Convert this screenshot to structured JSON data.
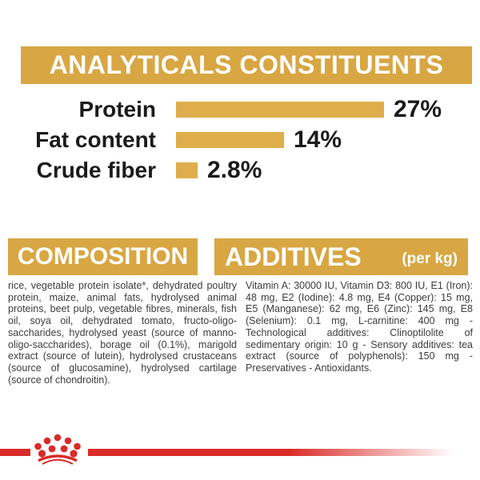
{
  "colors": {
    "gold_header": "#D8A743",
    "gold_bar": "#DFAE4B",
    "red": "#D92B27",
    "ink": "#1B1B1B",
    "body_text": "#3C3C3C"
  },
  "analyticals": {
    "title": "ANALYTICALS CONSTITUENTS"
  },
  "chart_data": {
    "type": "bar",
    "orientation": "horizontal",
    "title": "ANALYTICALS CONSTITUENTS",
    "categories": [
      "Protein",
      "Fat content",
      "Crude fiber"
    ],
    "values": [
      27,
      14,
      2.8
    ],
    "value_labels": [
      "27%",
      "14%",
      "2.8%"
    ],
    "unit": "%",
    "xlim": [
      0,
      28
    ],
    "grid": false,
    "legend": false,
    "bar_color": "#DFAE4B"
  },
  "composition": {
    "title": "COMPOSITION",
    "body": "rice, vegetable protein isolate*, dehydrated poultry protein, maize, animal fats, hydrolysed animal proteins, beet pulp, vegetable fibres, minerals, fish oil, soya oil, dehydrated tomato, fructo-oligo-saccharides, hydrolysed yeast (source of manno-oligo-saccharides), borage oil (0.1%), marigold extract (source of lutein), hydrolysed crustaceans (source of glucosamine), hydrolysed cartilage (source of chondroitin)."
  },
  "additives": {
    "title": "ADDITIVES",
    "title_suffix": "(per kg)",
    "body": "Vitamin A: 30000 IU, Vitamin D3: 800 IU, E1 (Iron): 48 mg, E2 (Iodine): 4.8 mg, E4 (Copper): 15 mg, E5 (Manganese): 62 mg, E6 (Zinc): 145 mg, E8 (Selenium): 0.1 mg, L-carnitine: 400 mg - Technological additives: Clinoptilolite of sedimentary origin: 10 g - Sensory additives: tea extract (source of polyphenols): 150 mg - Preservatives - Antioxidants."
  },
  "logo": {
    "name": "royal-canin-crown-logo"
  }
}
